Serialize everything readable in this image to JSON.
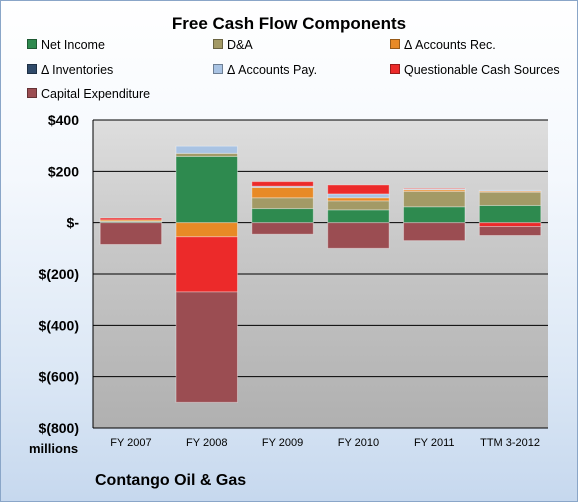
{
  "chart_data": {
    "type": "bar",
    "stacked": true,
    "title": "Free Cash Flow Components",
    "unit_label": "millions",
    "company": "Contango Oil & Gas",
    "categories": [
      "FY 2007",
      "FY 2008",
      "FY 2009",
      "FY 2010",
      "FY 2011",
      "TTM 3-2012"
    ],
    "ylim": [
      -800,
      400
    ],
    "yticks": [
      400,
      200,
      0,
      -200,
      -400,
      -600,
      -800
    ],
    "ytick_labels": [
      "$400",
      "$200",
      "$-",
      "$(200)",
      "$(400)",
      "$(600)",
      "$(800)"
    ],
    "grid": true,
    "legend_position": "top",
    "series": [
      {
        "name": "Net Income",
        "color": "#2e8a4f",
        "values": [
          4,
          258,
          55,
          50,
          62,
          67
        ]
      },
      {
        "name": "D&A",
        "color": "#a39a66",
        "values": [
          2,
          12,
          42,
          35,
          60,
          52
        ]
      },
      {
        "name": "Δ Accounts Rec.",
        "color": "#e88a26",
        "values": [
          5,
          -55,
          40,
          12,
          6,
          4
        ]
      },
      {
        "name": "Δ Inventories",
        "color": "#2f4a6a",
        "values": [
          0,
          0,
          0,
          0,
          0,
          0
        ]
      },
      {
        "name": "Δ Accounts Pay.",
        "color": "#a9c3e3",
        "values": [
          0,
          28,
          5,
          15,
          3,
          3
        ]
      },
      {
        "name": "Questionable Cash Sources",
        "color": "#ec2a2a",
        "values": [
          7,
          -215,
          18,
          35,
          2,
          -15
        ]
      },
      {
        "name": "Capital Expenditure",
        "color": "#9b4d52",
        "values": [
          -85,
          -430,
          -45,
          -100,
          -70,
          -35
        ]
      }
    ]
  }
}
